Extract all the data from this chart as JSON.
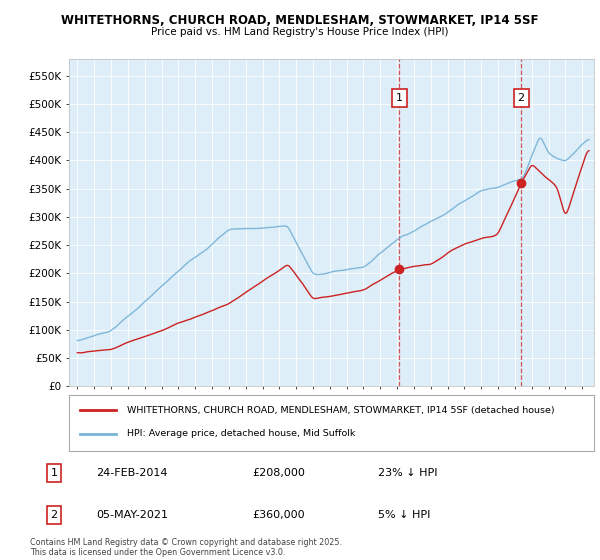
{
  "title_line1": "WHITETHORNS, CHURCH ROAD, MENDLESHAM, STOWMARKET, IP14 5SF",
  "title_line2": "Price paid vs. HM Land Registry's House Price Index (HPI)",
  "hpi_color": "#7ab4d8",
  "price_color": "#cc2222",
  "dashed_color": "#cc2222",
  "bg_color": "#ddeef8",
  "purchase1_x": 2014.12,
  "purchase1_y": 208000,
  "purchase2_x": 2021.37,
  "purchase2_y": 360000,
  "xlim": [
    1994.5,
    2025.7
  ],
  "ylim": [
    0,
    580000
  ],
  "yticks": [
    0,
    50000,
    100000,
    150000,
    200000,
    250000,
    300000,
    350000,
    400000,
    450000,
    500000,
    550000
  ],
  "ytick_labels": [
    "£0",
    "£50K",
    "£100K",
    "£150K",
    "£200K",
    "£250K",
    "£300K",
    "£350K",
    "£400K",
    "£450K",
    "£500K",
    "£550K"
  ],
  "xticks": [
    1995,
    1996,
    1997,
    1998,
    1999,
    2000,
    2001,
    2002,
    2003,
    2004,
    2005,
    2006,
    2007,
    2008,
    2009,
    2010,
    2011,
    2012,
    2013,
    2014,
    2015,
    2016,
    2017,
    2018,
    2019,
    2020,
    2021,
    2022,
    2023,
    2024,
    2025
  ],
  "legend_price": "WHITETHORNS, CHURCH ROAD, MENDLESHAM, STOWMARKET, IP14 5SF (detached house)",
  "legend_hpi": "HPI: Average price, detached house, Mid Suffolk",
  "ann1_label": "1",
  "ann1_date": "24-FEB-2014",
  "ann1_price": "£208,000",
  "ann1_pct": "23% ↓ HPI",
  "ann2_label": "2",
  "ann2_date": "05-MAY-2021",
  "ann2_price": "£360,000",
  "ann2_pct": "5% ↓ HPI",
  "copyright": "Contains HM Land Registry data © Crown copyright and database right 2025.\nThis data is licensed under the Open Government Licence v3.0."
}
